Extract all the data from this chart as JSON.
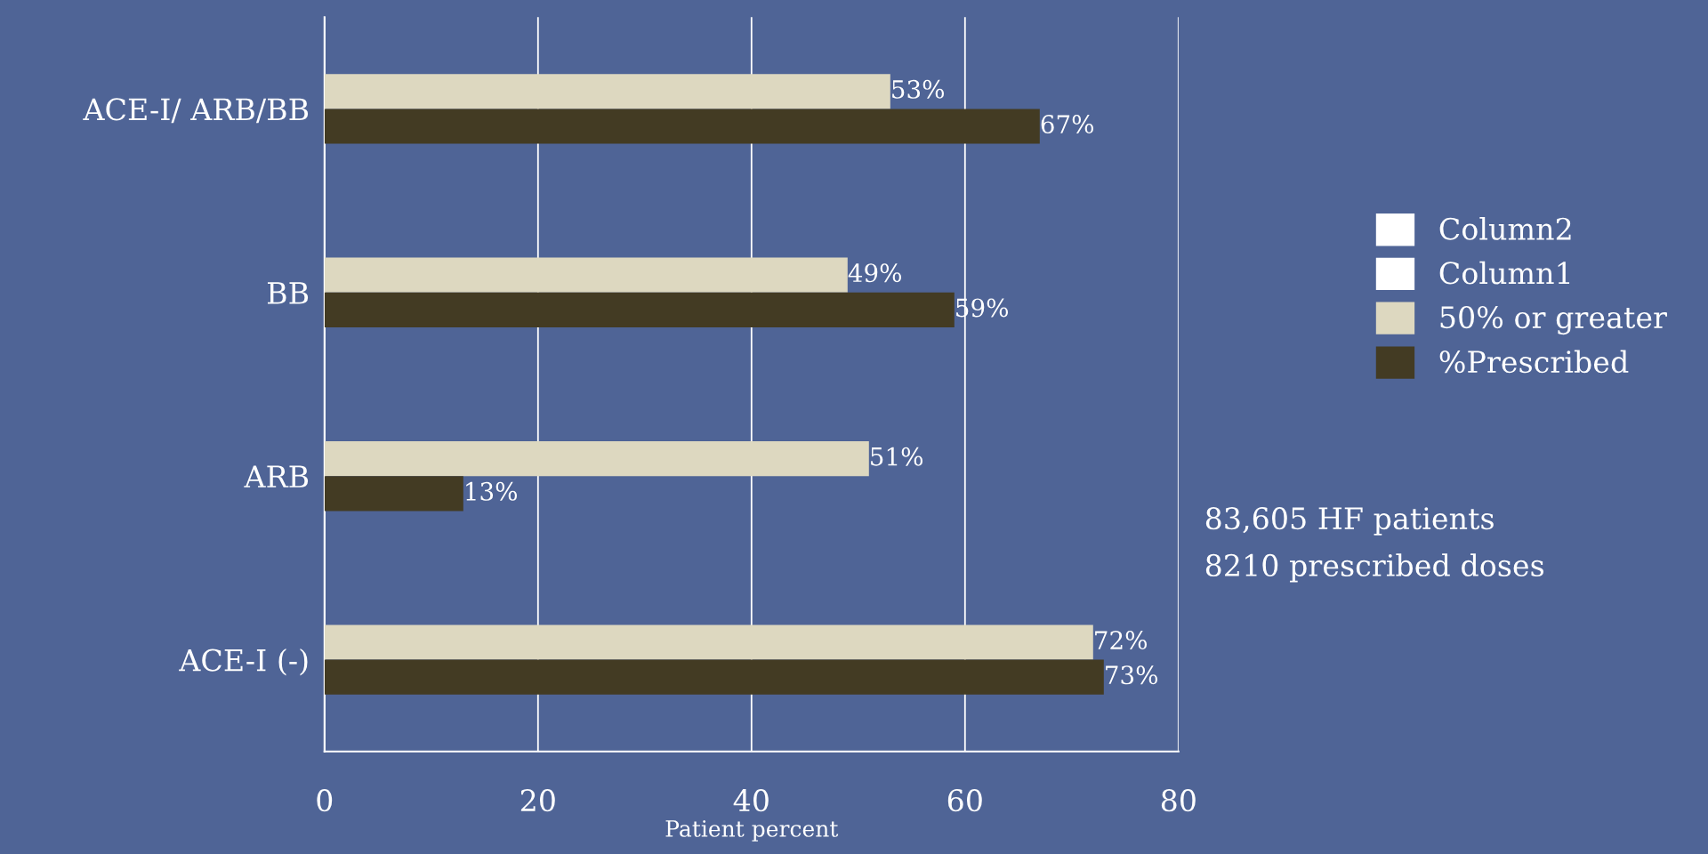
{
  "chart_data": {
    "type": "bar",
    "orientation": "horizontal",
    "xlabel": "Patient percent",
    "categories": [
      "ACE-I/ ARB/BB",
      "BB",
      "ARB",
      "ACE-I (-)"
    ],
    "series": [
      {
        "name": "Column2",
        "color": "#ffffff",
        "values": [
          null,
          null,
          null,
          null
        ]
      },
      {
        "name": "Column1",
        "color": "#ffffff",
        "values": [
          null,
          null,
          null,
          null
        ]
      },
      {
        "name": "50% or greater",
        "color": "#ddd8c0",
        "values": [
          53,
          49,
          51,
          72
        ],
        "value_labels": [
          "53%",
          "49%",
          "51%",
          "72%"
        ]
      },
      {
        "name": "%Prescribed",
        "color": "#433b23",
        "values": [
          67,
          59,
          13,
          73
        ],
        "value_labels": [
          "67%",
          "59%",
          "13%",
          "73%"
        ]
      }
    ],
    "xlim": [
      0,
      80
    ],
    "xticks": [
      0,
      20,
      40,
      60,
      80
    ],
    "grid": "x",
    "legend": "right",
    "annotations": [
      "83,605 HF patients",
      "8210 prescribed doses"
    ]
  }
}
